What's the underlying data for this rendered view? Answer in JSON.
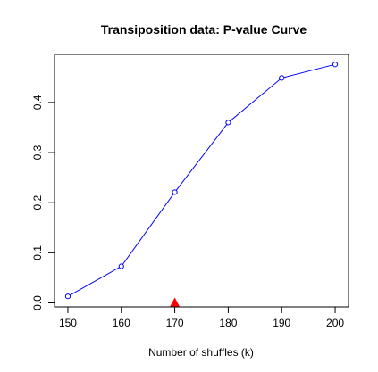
{
  "chart_data": {
    "type": "line",
    "title": "Transiposition data: P-value Curve",
    "xlabel": "Number of shuffles (k)",
    "ylabel": "",
    "xlim": [
      147.5,
      202.5
    ],
    "ylim": [
      -0.008,
      0.496
    ],
    "x_ticks": [
      150,
      160,
      170,
      180,
      190,
      200
    ],
    "y_ticks": [
      0.0,
      0.1,
      0.2,
      0.3,
      0.4
    ],
    "y_tick_labels": [
      "0.0",
      "0.1",
      "0.2",
      "0.3",
      "0.4"
    ],
    "series": [
      {
        "x": [
          150,
          160,
          170,
          180,
          190,
          200
        ],
        "values": [
          0.013,
          0.073,
          0.221,
          0.36,
          0.449,
          0.476
        ],
        "color": "#0000ff",
        "marker": "open-circle"
      }
    ],
    "marker_annotation": {
      "x": 170,
      "y": 0.0,
      "color": "#ff0000",
      "shape": "filled-triangle"
    },
    "grid": false,
    "legend": "none"
  }
}
